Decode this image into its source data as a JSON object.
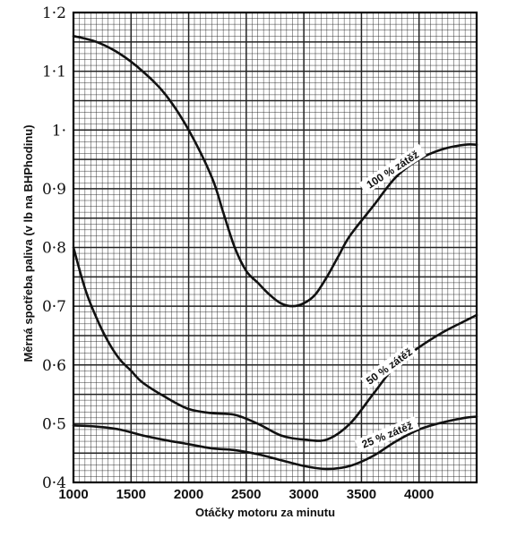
{
  "chart_data": {
    "type": "line",
    "xlabel": "Otáčky motoru za minutu",
    "ylabel": "Měrná spotřeba paliva (v lb na BHPhodinu)",
    "xlim": [
      1000,
      4500
    ],
    "ylim": [
      0.4,
      1.2
    ],
    "x_ticks": [
      1000,
      1500,
      2000,
      2500,
      3000,
      3500,
      4000
    ],
    "x_tick_labels": [
      "1000",
      "1500",
      "2000",
      "2500",
      "3000",
      "3500",
      "4000"
    ],
    "y_ticks": [
      0.4,
      0.5,
      0.6,
      0.7,
      0.8,
      0.9,
      1.0,
      1.1,
      1.2
    ],
    "y_tick_labels": [
      "0·4",
      "0·5",
      "0·6",
      "0·7",
      "0·8",
      "0·9",
      "1·",
      "1·1",
      "1·2"
    ],
    "grid": true,
    "series": [
      {
        "name": "100 % zátěž",
        "x": [
          1000,
          1200,
          1400,
          1600,
          1800,
          2000,
          2200,
          2300,
          2400,
          2500,
          2600,
          2700,
          2800,
          2900,
          3000,
          3100,
          3200,
          3300,
          3400,
          3600,
          3800,
          4000,
          4200,
          4400,
          4500
        ],
        "y": [
          1.16,
          1.15,
          1.13,
          1.1,
          1.06,
          1.0,
          0.92,
          0.86,
          0.8,
          0.76,
          0.74,
          0.72,
          0.705,
          0.7,
          0.705,
          0.72,
          0.75,
          0.785,
          0.82,
          0.87,
          0.92,
          0.95,
          0.967,
          0.975,
          0.975
        ]
      },
      {
        "name": "50 % zátěž",
        "x": [
          1000,
          1100,
          1200,
          1300,
          1400,
          1500,
          1600,
          1800,
          2000,
          2200,
          2400,
          2600,
          2800,
          3000,
          3200,
          3400,
          3600,
          3800,
          4000,
          4200,
          4400,
          4500
        ],
        "y": [
          0.8,
          0.73,
          0.68,
          0.64,
          0.61,
          0.59,
          0.57,
          0.545,
          0.525,
          0.518,
          0.515,
          0.5,
          0.48,
          0.473,
          0.473,
          0.5,
          0.55,
          0.6,
          0.63,
          0.655,
          0.675,
          0.685
        ]
      },
      {
        "name": "25 % zátěž",
        "x": [
          1000,
          1200,
          1400,
          1600,
          1800,
          2000,
          2200,
          2400,
          2600,
          2800,
          3000,
          3200,
          3400,
          3600,
          3800,
          4000,
          4200,
          4400,
          4500
        ],
        "y": [
          0.497,
          0.495,
          0.49,
          0.48,
          0.472,
          0.465,
          0.458,
          0.455,
          0.448,
          0.438,
          0.428,
          0.423,
          0.428,
          0.445,
          0.47,
          0.49,
          0.502,
          0.51,
          0.512
        ]
      }
    ]
  }
}
